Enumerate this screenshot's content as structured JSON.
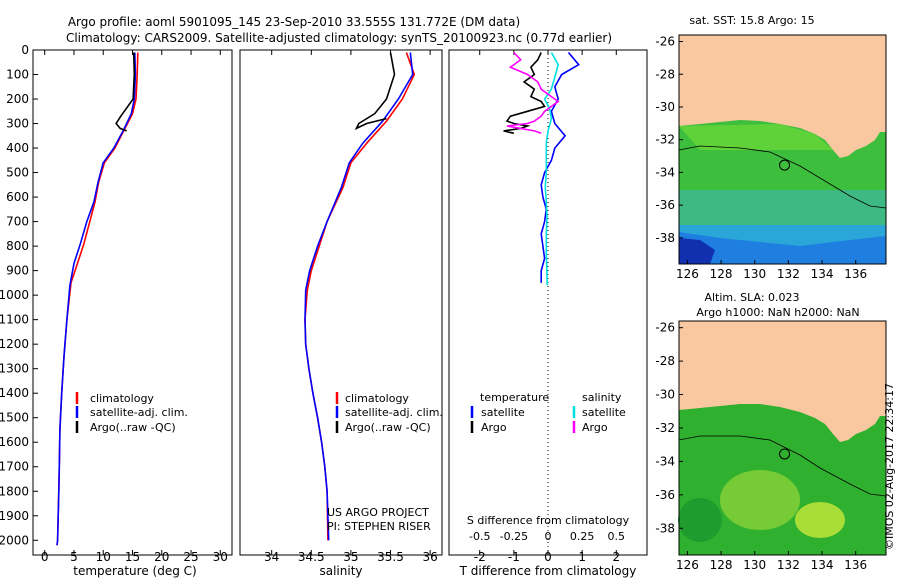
{
  "header": {
    "title_line1": "Argo profile: aoml 5901095_145 23-Sep-2010 33.555S 131.772E (DM data)",
    "title_line2": "Climatology: CARS2009. Satellite-adjusted climatology: synTS_20100923.nc (0.77d earlier)"
  },
  "footer": {
    "project_line1": "US ARGO PROJECT",
    "project_line2": "PI: STEPHEN RISER",
    "imos_stamp": "©IMOS 02-Aug-2017 22:34:17"
  },
  "chart_data": [
    {
      "type": "line",
      "id": "temperature",
      "xlabel": "temperature (deg C)",
      "xlim": [
        -2,
        32
      ],
      "xticks": [
        0,
        5,
        10,
        15,
        20,
        25,
        30
      ],
      "ylim": [
        0,
        2060
      ],
      "yticks": [
        0,
        100,
        200,
        300,
        400,
        500,
        600,
        700,
        800,
        900,
        1000,
        1100,
        1200,
        1300,
        1400,
        1500,
        1600,
        1700,
        1800,
        1900,
        2000
      ],
      "legend": [
        "climatology",
        "satellite-adj. clim.",
        "Argo(..raw -QC)"
      ],
      "series": [
        {
          "name": "climatology",
          "color": "#ff0000",
          "x": [
            15.9,
            15.8,
            15.6,
            15.0,
            13.5,
            12.0,
            10.2,
            9.2,
            8.6,
            7.7,
            6.7,
            5.6,
            4.5,
            3.8,
            3.3,
            2.9,
            2.6,
            2.5,
            2.4,
            2.3,
            2.2,
            2.1
          ],
          "y": [
            10,
            100,
            200,
            260,
            330,
            400,
            460,
            540,
            620,
            700,
            790,
            870,
            950,
            1100,
            1250,
            1400,
            1550,
            1700,
            1800,
            1900,
            2000,
            2020
          ]
        },
        {
          "name": "satellite-adj. clim.",
          "color": "#0000ff",
          "x": [
            15.4,
            15.5,
            15.3,
            14.8,
            13.4,
            11.8,
            10.0,
            9.1,
            8.4,
            7.2,
            6.1,
            5.0,
            4.3,
            3.8,
            3.3,
            2.9,
            2.6,
            2.5,
            2.4,
            2.3,
            2.2,
            2.1
          ],
          "y": [
            10,
            100,
            200,
            260,
            330,
            400,
            460,
            540,
            620,
            700,
            790,
            870,
            960,
            1100,
            1250,
            1400,
            1550,
            1700,
            1800,
            1900,
            2000,
            2020
          ]
        },
        {
          "name": "Argo(..raw -QC)",
          "color": "#000000",
          "x": [
            15.2,
            15.3,
            15.1,
            13.0,
            12.2,
            12.9,
            14.0
          ],
          "y": [
            10,
            100,
            200,
            270,
            300,
            320,
            330
          ]
        }
      ]
    },
    {
      "type": "line",
      "id": "salinity",
      "xlabel": "salinity",
      "xlim": [
        33.6,
        36.15
      ],
      "xticks": [
        34,
        34.5,
        35,
        35.5,
        36
      ],
      "ylim": [
        0,
        2060
      ],
      "legend": [
        "climatology",
        "satellite-adj. clim.",
        "Argo(..raw -QC)"
      ],
      "series": [
        {
          "name": "climatology",
          "color": "#ff0000",
          "x": [
            35.7,
            35.8,
            35.65,
            35.45,
            35.2,
            35.0,
            34.9,
            34.7,
            34.6,
            34.5,
            34.45,
            34.42,
            34.43,
            34.47,
            34.52,
            34.58,
            34.63,
            34.67,
            34.7,
            34.71
          ],
          "y": [
            10,
            100,
            200,
            290,
            380,
            460,
            560,
            700,
            800,
            900,
            980,
            1100,
            1200,
            1300,
            1400,
            1500,
            1600,
            1700,
            1800,
            2000
          ]
        },
        {
          "name": "satellite-adj. clim.",
          "color": "#0000ff",
          "x": [
            35.75,
            35.78,
            35.6,
            35.4,
            35.15,
            34.98,
            34.88,
            34.7,
            34.58,
            34.48,
            34.43,
            34.42,
            34.43,
            34.47,
            34.52,
            34.58,
            34.63,
            34.67,
            34.7,
            34.72
          ],
          "y": [
            10,
            100,
            200,
            290,
            380,
            460,
            560,
            700,
            800,
            900,
            980,
            1100,
            1200,
            1300,
            1400,
            1500,
            1600,
            1700,
            1800,
            2000
          ]
        },
        {
          "name": "Argo(..raw -QC)",
          "color": "#000000",
          "x": [
            35.5,
            35.55,
            35.45,
            35.3,
            35.1,
            35.07,
            35.2,
            35.45
          ],
          "y": [
            10,
            100,
            200,
            260,
            300,
            320,
            300,
            280
          ]
        }
      ]
    },
    {
      "type": "line",
      "id": "difference",
      "xlabel": "T difference from climatology",
      "xlabel_top": "S difference from climatology",
      "xlim": [
        -2.9,
        2.9
      ],
      "xticks": [
        -2,
        -1,
        0,
        1,
        2
      ],
      "s_xticks_labels": [
        "-0.5",
        "-0.25",
        "0",
        "0.25",
        "0.5"
      ],
      "ylim": [
        0,
        2060
      ],
      "legend_temperature_title": "temperature",
      "legend_salinity_title": "salinity",
      "legend_temperature": [
        "satellite",
        "Argo"
      ],
      "legend_salinity": [
        "satellite",
        "Argo"
      ],
      "series": [
        {
          "name": "T satellite",
          "color": "#0000ff",
          "x": [
            0.6,
            0.9,
            0.4,
            0.2,
            0.3,
            0.1,
            0.2,
            0.5,
            0.2,
            0.1,
            -0.1,
            -0.2,
            -0.15,
            -0.05,
            -0.1,
            -0.2,
            -0.15,
            -0.1,
            -0.2,
            -0.2
          ],
          "y": [
            10,
            60,
            100,
            150,
            200,
            250,
            300,
            350,
            400,
            450,
            500,
            550,
            600,
            650,
            700,
            750,
            800,
            850,
            900,
            950
          ]
        },
        {
          "name": "S satellite",
          "color": "#00e0e0",
          "x": [
            0.1,
            0.3,
            0.2,
            0.1,
            -0.1,
            0.05,
            0.1,
            0.0,
            -0.05,
            -0.05,
            -0.05,
            -0.08,
            -0.05,
            -0.03,
            -0.05,
            -0.05,
            -0.02
          ],
          "y": [
            10,
            60,
            110,
            160,
            200,
            240,
            280,
            330,
            380,
            430,
            500,
            560,
            620,
            680,
            750,
            830,
            960
          ]
        },
        {
          "name": "T Argo",
          "color": "#000000",
          "x": [
            -0.2,
            -0.3,
            -0.5,
            -0.4,
            -0.7,
            -0.4,
            -0.5,
            -0.2,
            -0.1,
            -0.6,
            -1.1,
            -1.2,
            -1.0,
            -0.6,
            -0.8,
            -1.3,
            -1.0
          ],
          "y": [
            10,
            40,
            70,
            100,
            130,
            160,
            190,
            210,
            230,
            250,
            270,
            290,
            300,
            310,
            320,
            330,
            340
          ]
        },
        {
          "name": "S Argo",
          "color": "#ff00ff",
          "x": [
            -1.0,
            -0.8,
            -1.1,
            -0.6,
            -0.3,
            -0.2,
            0.1,
            0.3,
            0.1,
            -0.1,
            -0.2,
            -0.4,
            -0.6,
            -1.2,
            -0.8,
            -0.4,
            -0.2
          ],
          "y": [
            10,
            40,
            70,
            100,
            130,
            160,
            190,
            210,
            230,
            250,
            270,
            290,
            300,
            310,
            320,
            330,
            340
          ]
        }
      ]
    },
    {
      "type": "heatmap",
      "id": "sst-map",
      "title": "sat. SST: 15.8 Argo: 15",
      "xticks": [
        126,
        128,
        130,
        132,
        134,
        136
      ],
      "yticks": [
        -26,
        -28,
        -30,
        -32,
        -34,
        -36,
        -38
      ],
      "marker": [
        131.772,
        -33.555
      ]
    },
    {
      "type": "heatmap",
      "id": "sla-map",
      "title_line1": "Altim. SLA: 0.023",
      "title_line2": "Argo h1000: NaN h2000: NaN",
      "xticks": [
        126,
        128,
        130,
        132,
        134,
        136
      ],
      "yticks": [
        -26,
        -28,
        -30,
        -32,
        -34,
        -36,
        -38
      ],
      "marker": [
        131.772,
        -33.555
      ]
    }
  ]
}
